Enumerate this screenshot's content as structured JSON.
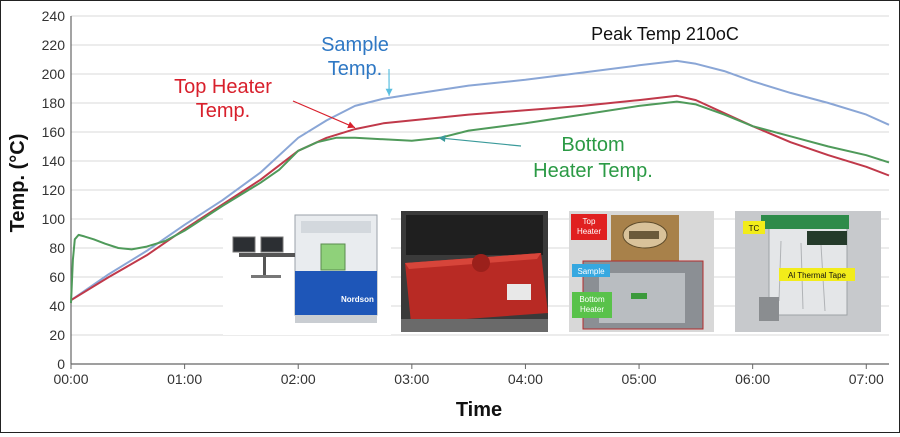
{
  "chart_data": {
    "type": "line",
    "xlabel": "Time",
    "ylabel": "Temp. (°C)",
    "xlim": [
      0,
      432
    ],
    "ylim": [
      0,
      240
    ],
    "y_ticks": [
      0,
      20,
      40,
      60,
      80,
      100,
      120,
      140,
      160,
      180,
      200,
      220,
      240
    ],
    "x_ticks": [
      {
        "label": "00:00",
        "value": 0
      },
      {
        "label": "01:00",
        "value": 60
      },
      {
        "label": "02:00",
        "value": 120
      },
      {
        "label": "03:00",
        "value": 180
      },
      {
        "label": "04:00",
        "value": 240
      },
      {
        "label": "05:00",
        "value": 300
      },
      {
        "label": "06:00",
        "value": 360
      },
      {
        "label": "07:00",
        "value": 420
      }
    ],
    "grid": "horizontal",
    "series": [
      {
        "id": "sample",
        "color": "#8aa6d6",
        "points": [
          [
            0,
            44
          ],
          [
            20,
            62
          ],
          [
            40,
            78
          ],
          [
            60,
            96
          ],
          [
            80,
            113
          ],
          [
            100,
            132
          ],
          [
            120,
            156
          ],
          [
            135,
            168
          ],
          [
            150,
            178
          ],
          [
            165,
            183
          ],
          [
            180,
            186
          ],
          [
            210,
            192
          ],
          [
            240,
            196
          ],
          [
            270,
            201
          ],
          [
            300,
            206
          ],
          [
            320,
            209
          ],
          [
            330,
            207
          ],
          [
            345,
            202
          ],
          [
            360,
            195
          ],
          [
            380,
            187
          ],
          [
            400,
            180
          ],
          [
            420,
            172
          ],
          [
            432,
            165
          ]
        ]
      },
      {
        "id": "top-heater",
        "color": "#c0394a",
        "points": [
          [
            0,
            44
          ],
          [
            20,
            60
          ],
          [
            40,
            75
          ],
          [
            60,
            93
          ],
          [
            80,
            110
          ],
          [
            100,
            127
          ],
          [
            120,
            147
          ],
          [
            135,
            156
          ],
          [
            150,
            162
          ],
          [
            165,
            166
          ],
          [
            180,
            168
          ],
          [
            210,
            172
          ],
          [
            240,
            175
          ],
          [
            270,
            178
          ],
          [
            300,
            182
          ],
          [
            320,
            185
          ],
          [
            330,
            182
          ],
          [
            345,
            173
          ],
          [
            360,
            164
          ],
          [
            380,
            153
          ],
          [
            400,
            144
          ],
          [
            420,
            136
          ],
          [
            432,
            130
          ]
        ]
      },
      {
        "id": "bottom-heater",
        "color": "#4f9a5a",
        "points": [
          [
            0,
            42
          ],
          [
            1,
            72
          ],
          [
            2,
            86
          ],
          [
            4,
            89
          ],
          [
            7,
            88
          ],
          [
            12,
            86
          ],
          [
            18,
            83
          ],
          [
            25,
            80
          ],
          [
            32,
            79
          ],
          [
            40,
            81
          ],
          [
            50,
            85
          ],
          [
            60,
            92
          ],
          [
            80,
            109
          ],
          [
            100,
            125
          ],
          [
            110,
            134
          ],
          [
            120,
            147
          ],
          [
            130,
            153
          ],
          [
            140,
            156
          ],
          [
            150,
            156
          ],
          [
            165,
            155
          ],
          [
            180,
            154
          ],
          [
            195,
            156
          ],
          [
            210,
            161
          ],
          [
            240,
            166
          ],
          [
            270,
            172
          ],
          [
            300,
            178
          ],
          [
            320,
            181
          ],
          [
            330,
            179
          ],
          [
            345,
            172
          ],
          [
            360,
            164
          ],
          [
            380,
            157
          ],
          [
            400,
            150
          ],
          [
            420,
            144
          ],
          [
            432,
            139
          ]
        ]
      }
    ],
    "annotations": [
      {
        "id": "sample-label",
        "lines": [
          "Sample",
          "Temp."
        ],
        "color": "#2f78c4",
        "target_x": 168,
        "target_y": 185,
        "arrow_color": "#5bbfe0"
      },
      {
        "id": "top-heater-label",
        "lines": [
          "Top Heater",
          "Temp."
        ],
        "color": "#d8202c",
        "target_x": 150,
        "target_y": 163,
        "arrow_color": "#d8202c"
      },
      {
        "id": "bottom-heater-label",
        "lines": [
          "Bottom",
          "Heater Temp."
        ],
        "color": "#2b9a45",
        "target_x": 194,
        "target_y": 156,
        "arrow_color": "#3a9a9a"
      },
      {
        "id": "peak-label",
        "lines": [
          "Peak Temp 210oC"
        ],
        "color": "#111111"
      }
    ],
    "inset_photos": [
      {
        "id": "xray-machine-photo",
        "brand": "Nordson"
      },
      {
        "id": "red-heater-plate-photo"
      },
      {
        "id": "heater-chamber-photo",
        "labels": [
          {
            "text": "Top\nHeater",
            "bg": "#e02020",
            "fg": "#ffffff"
          },
          {
            "text": "Sample",
            "bg": "#36a8e0",
            "fg": "#ffffff"
          },
          {
            "text": "Bottom\nHeater",
            "bg": "#59c24a",
            "fg": "#ffffff"
          }
        ]
      },
      {
        "id": "thermal-tape-photo",
        "labels": [
          {
            "text": "TC",
            "bg": "#f2ec1a",
            "fg": "#111111"
          },
          {
            "text": "Al Thermal Tape",
            "bg": "#f2ec1a",
            "fg": "#111111"
          }
        ]
      }
    ]
  }
}
